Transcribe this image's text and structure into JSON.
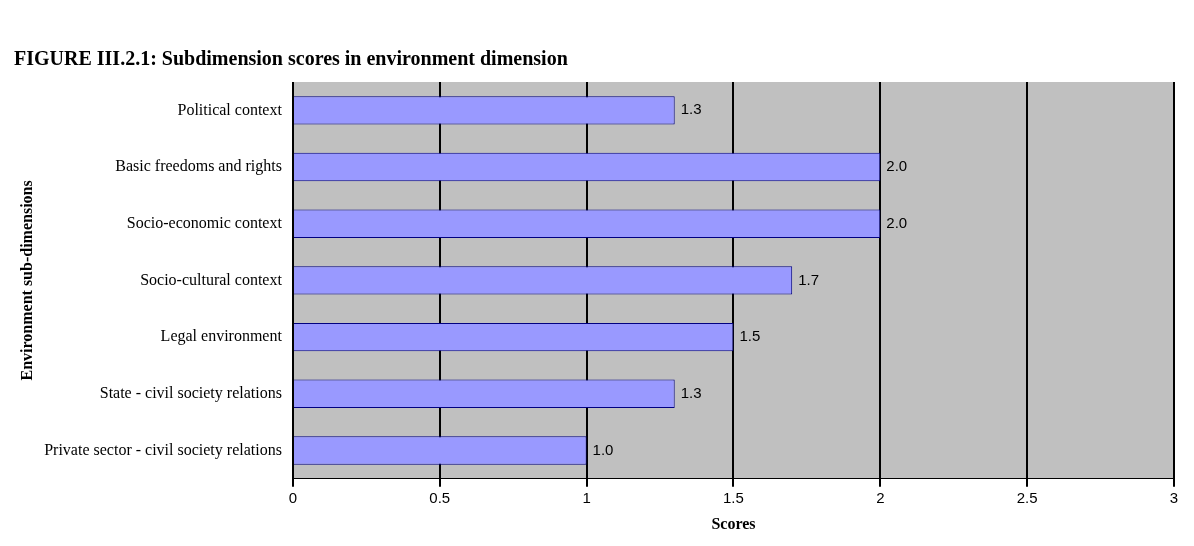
{
  "chart_data": {
    "type": "bar",
    "orientation": "horizontal",
    "title": "FIGURE III.2.1: Subdimension scores in environment dimension",
    "xlabel": "Scores",
    "ylabel": "Environment sub-dimensions",
    "categories": [
      "Political context",
      "Basic freedoms and rights",
      "Socio-economic context",
      "Socio-cultural context",
      "Legal environment",
      "State - civil society relations",
      "Private sector - civil society relations"
    ],
    "values": [
      1.3,
      2.0,
      2.0,
      1.7,
      1.5,
      1.3,
      1.0
    ],
    "value_labels": [
      "1.3",
      "2.0",
      "2.0",
      "1.7",
      "1.5",
      "1.3",
      "1.0"
    ],
    "color": "#9999ff",
    "xlim": [
      0,
      3
    ],
    "xticks": [
      0,
      0.5,
      1,
      1.5,
      2,
      2.5,
      3
    ],
    "grid": "x"
  }
}
